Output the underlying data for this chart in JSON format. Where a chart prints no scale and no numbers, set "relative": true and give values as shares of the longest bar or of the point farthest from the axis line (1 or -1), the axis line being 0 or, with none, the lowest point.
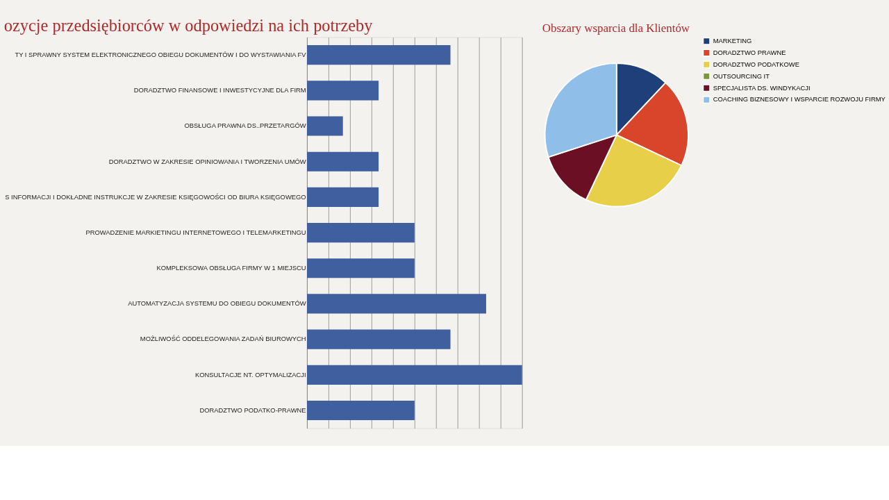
{
  "chart_data": [
    {
      "type": "bar",
      "orientation": "horizontal",
      "relative": true,
      "title": "ozycje przedsiębiorców w odpowiedzi na ich potrzeby",
      "categories": [
        "TY I SPRAWNY SYSTEM ELEKTRONICZNEGO OBIEGU DOKUMENTÓW I DO WYSTAWIANIA FV",
        "DORADZTWO FINANSOWE I INWESTYCYJNE DLA FIRM",
        "OBSŁUGA PRAWNA DS..PRZETARGÓW",
        "DORADZTWO W ZAKRESIE OPINIOWANIA I TWORZENIA UMÓW",
        "S INFORMACJI I DOKŁADNE INSTRUKCJE W ZAKRESIE KSIĘGOWOŚCI OD BIURA KSIĘGOWEGO",
        "PROWADZENIE MARKIETINGU INTERNETOWEGO I TELEMARKETINGU",
        "KOMPLEKSOWA OBSŁUGA FIRMY W 1 MIEJSCU",
        "AUTOMATYZACJA SYSTEMU DO OBIEGU DOKUMENTÓW",
        "MOŻLIWOŚĆ ODDELEGOWANIA ZADAŃ BIUROWYCH",
        "KONSULTACJE NT. OPTYMALIZACJI",
        "DORADZTWO PODATKO-PRAWNE"
      ],
      "values": [
        0.667,
        0.333,
        0.167,
        0.333,
        0.333,
        0.5,
        0.5,
        0.833,
        0.667,
        1,
        0.5
      ],
      "color": "#3f5f9f",
      "grid": "x"
    },
    {
      "type": "pie",
      "title": "Obszary wsparcia dla Klientów",
      "categories": [
        "MARKETING",
        "DORADZTWO PRAWNE",
        "DORADZTWO PODATKOWE",
        "OUTSOURCING IT",
        "SPECJALISTA DS. WINDYKACJI",
        "COACHING BIZNESOWY I WSPARCIE ROZWOJU FIRMY"
      ],
      "values": [
        12,
        20,
        25,
        null,
        13,
        30
      ],
      "colors": [
        "#1f3f7a",
        "#d9452b",
        "#e8cf4a",
        "#7a9a3a",
        "#6b0f24",
        "#8fbfe8"
      ],
      "legend": "right"
    }
  ]
}
